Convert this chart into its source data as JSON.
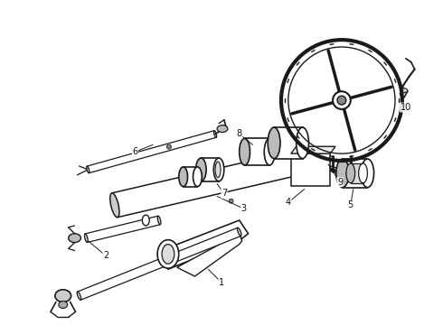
{
  "background_color": "#ffffff",
  "line_color": "#1a1a1a",
  "fig_width": 4.9,
  "fig_height": 3.6,
  "dpi": 100,
  "label_fontsize": 7.0
}
